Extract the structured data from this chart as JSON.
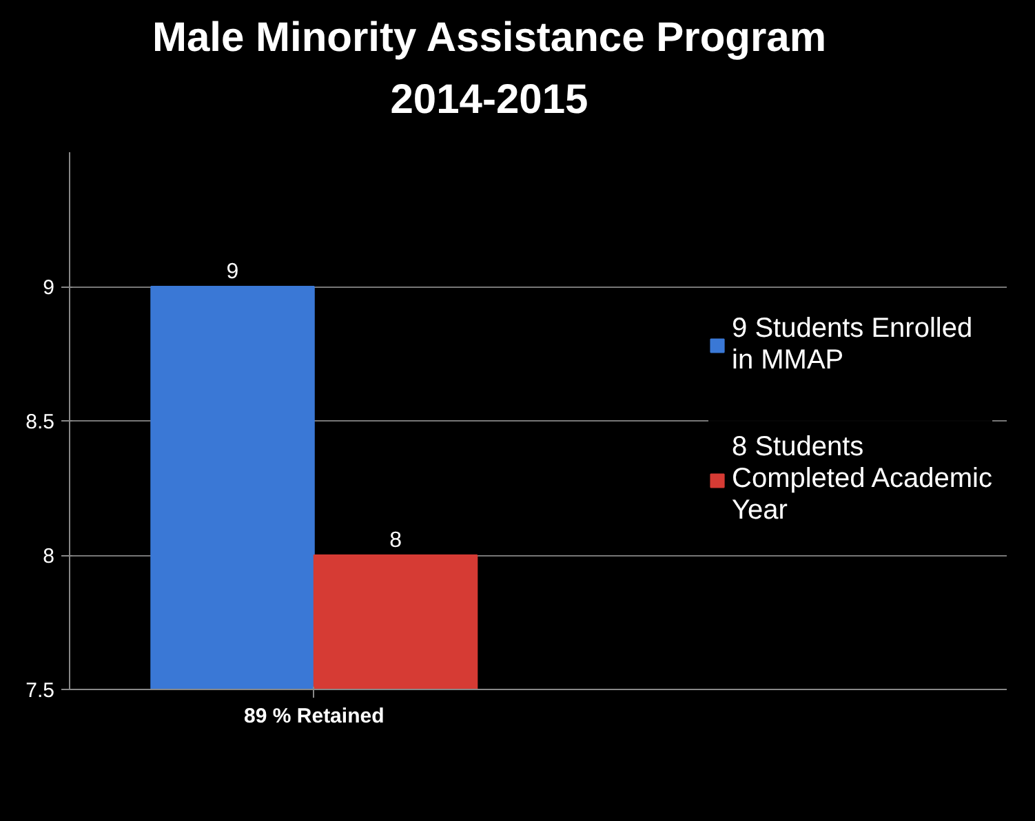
{
  "chart_data": {
    "type": "bar",
    "title": "Male Minority Assistance Program\n2014-2015",
    "categories": [
      "89 % Retained"
    ],
    "series": [
      {
        "name": "9 Students Enrolled in MMAP",
        "color": "#3a78d6",
        "values": [
          9
        ]
      },
      {
        "name": "8 Students Completed Academic Year",
        "color": "#d63b34",
        "values": [
          8
        ]
      }
    ],
    "ylim": [
      7.5,
      9.5
    ],
    "yticks": [
      7.5,
      8,
      8.5,
      9
    ],
    "grid": "y",
    "legend": "right",
    "data_labels": true
  }
}
